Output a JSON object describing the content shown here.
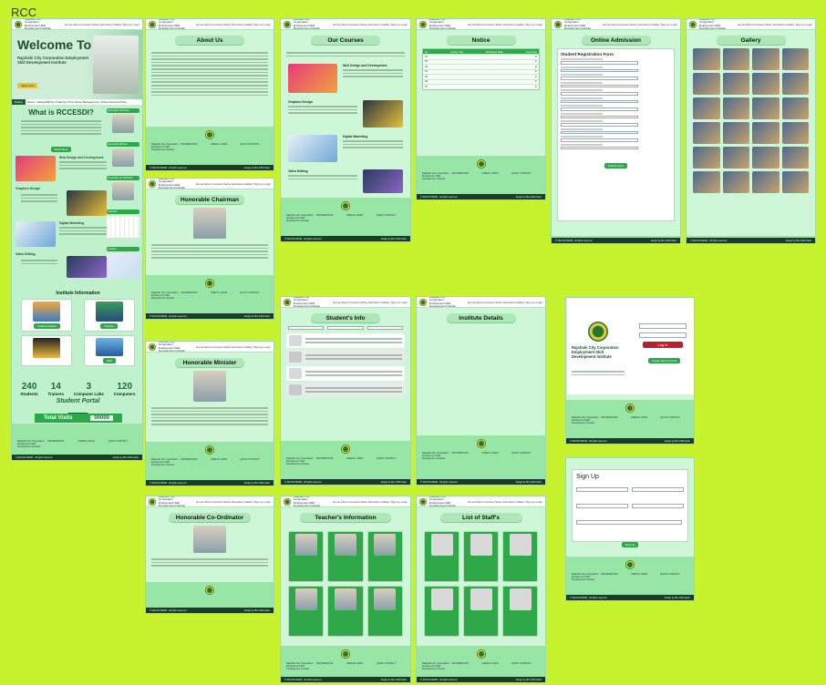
{
  "canvas": {
    "title": "RCC"
  },
  "site": {
    "name": "Rajshahi City Corporation Employment Skill Development Institute",
    "nav": "Home  About  Courses  Notice  Admission  Gallery  Sign up  Login",
    "copyright": "© 2024 RCCESDI - All rights reserved",
    "design_credit": "Design by Md. Arifful Islam",
    "footer_cols": [
      "Rajshahi City Corporation Employment Skill Development Institute",
      "INFORMATION",
      "USEFUL LINKS",
      "QUICK CONTACT"
    ]
  },
  "home": {
    "welcome": "Welcome To",
    "institute": "Rajshahi City Corporation Employment Skill Development Institute",
    "apply_button": "Apply Now",
    "ticker_label": "Notice",
    "ticker_text": "Notice, Update Bill Top Ordering of the Notice Management, Online Notice Archive",
    "what_title": "What is RCCESDI?",
    "read_more": "Read More",
    "side_headings": [
      "Honorable Chairman",
      "Honorable Minister",
      "Honorable Co-Ordinator",
      "Calendar",
      "Location"
    ],
    "course_web": "Web Design and Development",
    "course_graphic": "Graphics Design",
    "course_digital": "Digital Marketing",
    "course_video": "Video Editing",
    "info_title": "Institute Information",
    "info_buttons": [
      "Institute Details",
      "Teacher",
      "Staff"
    ],
    "stats": [
      {
        "value": "240",
        "label": "Students"
      },
      {
        "value": "14",
        "label": "Trainers"
      },
      {
        "value": "3",
        "label": "Computer Labs"
      },
      {
        "value": "120",
        "label": "Computers"
      }
    ],
    "portal_title": "Student Portal",
    "portal_button": "Login Now",
    "visits_label": "Total Visits",
    "visits_value": "00000"
  },
  "pages": {
    "about": "About Us",
    "courses": "Our Courses",
    "notice": "Notice",
    "admission": "Online Admission",
    "gallery": "Gallery",
    "chairman": "Honorable Chairman",
    "minister": "Honorable Minister",
    "coordinator": "Honorable Co-Ordinator",
    "students": "Student's Info",
    "institute": "Institute Details",
    "teachers": "Teacher's Information",
    "staff": "List of Staff's"
  },
  "notice_table": {
    "headers": [
      "SL",
      "Notice Title",
      "Published Date",
      "Download"
    ],
    "rows": [
      "01",
      "02",
      "03",
      "04",
      "05",
      "06",
      "07"
    ]
  },
  "admission_form": {
    "title": "Student Registration Form",
    "submit": "Submit Form"
  },
  "login": {
    "institute": "Rajshahi City Corporation Employment Skill Development Institute",
    "button": "Log in",
    "create": "Create New Account"
  },
  "signup": {
    "title": "Sign Up",
    "button": "Sing Up"
  },
  "colors": {
    "accent": "#2fa84a",
    "page_bg": "#cdf7d6",
    "canvas": "#c6f22e"
  }
}
